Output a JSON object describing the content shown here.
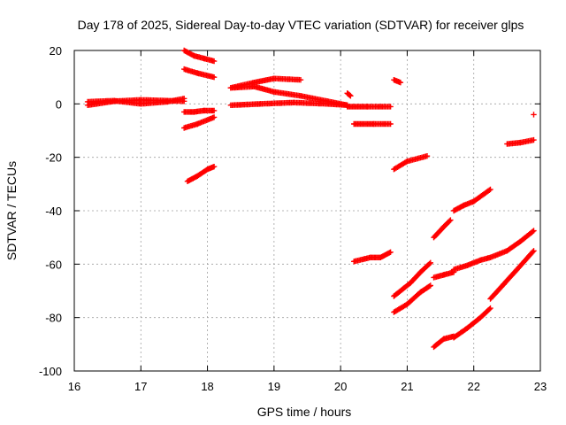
{
  "chart_data": {
    "type": "scatter",
    "title": "Day 178 of 2025, Sidereal Day-to-day VTEC variation (SDTVAR) for receiver glps",
    "xlabel": "GPS time / hours",
    "ylabel": "SDTVAR / TECUs",
    "xlim": [
      16,
      23
    ],
    "ylim": [
      -100,
      20
    ],
    "xticks": [
      16,
      17,
      18,
      19,
      20,
      21,
      22,
      23
    ],
    "yticks": [
      -100,
      -80,
      -60,
      -40,
      -20,
      0,
      20
    ],
    "grid": true,
    "marker": "+",
    "color": "#ff0000",
    "series": [
      {
        "points": [
          [
            16.2,
            -0.5
          ],
          [
            16.6,
            1.0
          ],
          [
            17.0,
            1.5
          ],
          [
            17.4,
            1.2
          ],
          [
            17.65,
            1.0
          ]
        ]
      },
      {
        "points": [
          [
            16.2,
            0.8
          ],
          [
            16.6,
            1.2
          ],
          [
            17.0,
            0.0
          ],
          [
            17.4,
            0.8
          ],
          [
            17.65,
            2.0
          ]
        ]
      },
      {
        "points": [
          [
            17.65,
            20.0
          ],
          [
            17.8,
            18.0
          ],
          [
            17.95,
            17.0
          ],
          [
            18.1,
            16.0
          ]
        ]
      },
      {
        "points": [
          [
            17.65,
            13.0
          ],
          [
            17.85,
            11.5
          ],
          [
            18.1,
            10.0
          ]
        ]
      },
      {
        "points": [
          [
            17.65,
            -3.0
          ],
          [
            17.8,
            -3.0
          ],
          [
            17.95,
            -2.5
          ],
          [
            18.1,
            -2.5
          ]
        ]
      },
      {
        "points": [
          [
            17.65,
            -9.0
          ],
          [
            17.85,
            -7.5
          ],
          [
            18.1,
            -5.0
          ]
        ]
      },
      {
        "points": [
          [
            17.7,
            -29.0
          ],
          [
            17.85,
            -27.0
          ],
          [
            18.0,
            -24.5
          ],
          [
            18.1,
            -23.5
          ]
        ]
      },
      {
        "points": [
          [
            18.35,
            6.0
          ],
          [
            18.7,
            8.0
          ],
          [
            19.0,
            9.5
          ],
          [
            19.4,
            9.0
          ]
        ]
      },
      {
        "points": [
          [
            18.35,
            6.0
          ],
          [
            18.7,
            6.5
          ],
          [
            19.0,
            4.5
          ],
          [
            19.4,
            3.0
          ],
          [
            19.8,
            1.0
          ],
          [
            20.1,
            -0.5
          ]
        ]
      },
      {
        "points": [
          [
            18.35,
            -0.5
          ],
          [
            18.8,
            0.0
          ],
          [
            19.3,
            0.5
          ],
          [
            19.8,
            0.0
          ],
          [
            20.1,
            -0.5
          ]
        ]
      },
      {
        "points": [
          [
            20.1,
            4.0
          ],
          [
            20.15,
            3.0
          ]
        ]
      },
      {
        "points": [
          [
            20.1,
            -1.0
          ],
          [
            20.4,
            -1.0
          ],
          [
            20.75,
            -1.0
          ]
        ]
      },
      {
        "points": [
          [
            20.2,
            -7.5
          ],
          [
            20.5,
            -7.5
          ],
          [
            20.75,
            -7.5
          ]
        ]
      },
      {
        "points": [
          [
            20.2,
            -59.0
          ],
          [
            20.45,
            -57.5
          ],
          [
            20.6,
            -57.5
          ],
          [
            20.75,
            -55.5
          ]
        ]
      },
      {
        "points": [
          [
            20.8,
            9.0
          ],
          [
            20.9,
            8.0
          ]
        ]
      },
      {
        "points": [
          [
            20.8,
            -24.5
          ],
          [
            21.0,
            -21.5
          ],
          [
            21.3,
            -19.5
          ]
        ]
      },
      {
        "points": [
          [
            20.8,
            -72.0
          ],
          [
            21.05,
            -67.0
          ],
          [
            21.2,
            -63.0
          ],
          [
            21.35,
            -59.5
          ]
        ]
      },
      {
        "points": [
          [
            20.8,
            -78.0
          ],
          [
            21.0,
            -75.0
          ],
          [
            21.2,
            -70.5
          ],
          [
            21.35,
            -68.0
          ]
        ]
      },
      {
        "points": [
          [
            21.4,
            -50.0
          ],
          [
            21.55,
            -46.0
          ],
          [
            21.65,
            -43.5
          ]
        ]
      },
      {
        "points": [
          [
            21.4,
            -65.0
          ],
          [
            21.55,
            -64.0
          ],
          [
            21.7,
            -63.0
          ]
        ]
      },
      {
        "points": [
          [
            21.4,
            -91.0
          ],
          [
            21.55,
            -88.0
          ],
          [
            21.7,
            -87.0
          ]
        ]
      },
      {
        "points": [
          [
            21.7,
            -40.0
          ],
          [
            21.85,
            -38.0
          ],
          [
            22.0,
            -36.5
          ],
          [
            22.25,
            -32.0
          ]
        ]
      },
      {
        "points": [
          [
            21.7,
            -62.0
          ],
          [
            21.9,
            -60.5
          ],
          [
            22.1,
            -58.5
          ],
          [
            22.25,
            -57.5
          ]
        ]
      },
      {
        "points": [
          [
            21.7,
            -87.5
          ],
          [
            21.9,
            -84.0
          ],
          [
            22.1,
            -80.0
          ],
          [
            22.25,
            -76.5
          ]
        ]
      },
      {
        "points": [
          [
            22.25,
            -57.5
          ],
          [
            22.5,
            -55.0
          ],
          [
            22.7,
            -51.5
          ],
          [
            22.9,
            -47.5
          ]
        ]
      },
      {
        "points": [
          [
            22.25,
            -73.0
          ],
          [
            22.45,
            -67.5
          ],
          [
            22.65,
            -62.0
          ],
          [
            22.9,
            -55.0
          ]
        ]
      },
      {
        "points": [
          [
            22.5,
            -15.0
          ],
          [
            22.7,
            -14.5
          ],
          [
            22.9,
            -13.5
          ]
        ]
      },
      {
        "points": [
          [
            22.9,
            -4.0
          ]
        ]
      }
    ]
  }
}
